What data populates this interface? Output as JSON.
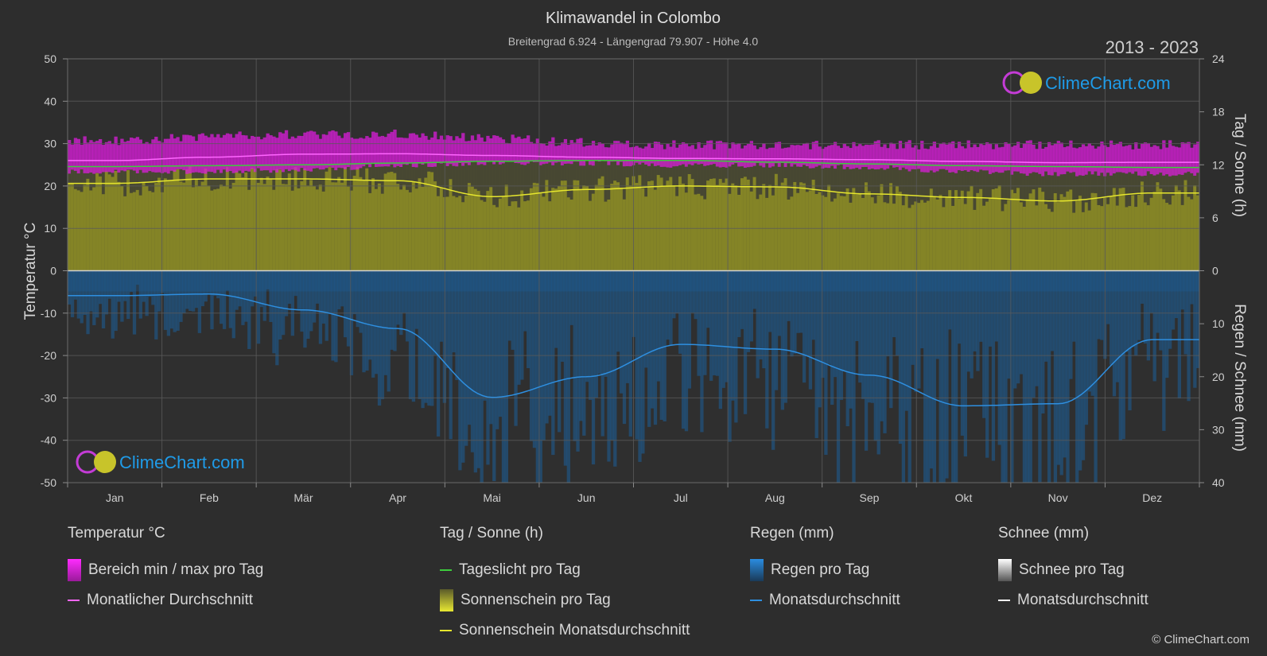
{
  "title": "Klimawandel in Colombo",
  "subtitle": "Breitengrad 6.924 - Längengrad 79.907 - Höhe 4.0",
  "years": "2013 - 2023",
  "logo_text": "ClimeChart.com",
  "copyright": "© ClimeChart.com",
  "colors": {
    "background": "#2d2d2d",
    "temp_range": "#d91ed9",
    "temp_avg": "#ff66ff",
    "daylight": "#3dcc3d",
    "sunshine_fill": "#8f8f24",
    "sunshine_avg": "#e6e62e",
    "rain_fill": "#1c5f99",
    "rain_avg": "#2e8fe0",
    "snow_avg": "#ffffff",
    "logo_blue": "#1f9be8"
  },
  "chart_data": {
    "type": "area",
    "categories": [
      "Jan",
      "Feb",
      "Mär",
      "Apr",
      "Mai",
      "Jun",
      "Jul",
      "Aug",
      "Sep",
      "Okt",
      "Nov",
      "Dez"
    ],
    "axes": {
      "left": {
        "label": "Temperatur °C",
        "range": [
          -50,
          50
        ],
        "ticks": [
          50,
          40,
          30,
          20,
          10,
          0,
          -10,
          -20,
          -30,
          -40,
          -50
        ]
      },
      "right_top": {
        "label": "Tag / Sonne (h)",
        "range": [
          0,
          24
        ],
        "ticks": [
          24,
          18,
          12,
          6,
          0
        ]
      },
      "right_bottom": {
        "label": "Regen / Schnee (mm)",
        "range": [
          0,
          40
        ],
        "ticks": [
          0,
          10,
          20,
          30,
          40
        ]
      }
    },
    "grid": true,
    "series": {
      "temp_max": [
        30.5,
        31.5,
        32.0,
        32.0,
        31.0,
        30.0,
        29.5,
        29.5,
        29.5,
        29.5,
        29.5,
        29.5
      ],
      "temp_min": [
        23.5,
        23.5,
        24.0,
        25.0,
        25.5,
        25.5,
        25.0,
        25.0,
        24.5,
        23.5,
        23.0,
        23.0
      ],
      "temp_avg": [
        26.0,
        26.8,
        27.5,
        27.6,
        27.2,
        26.8,
        26.5,
        26.4,
        26.2,
        25.8,
        25.5,
        25.6
      ],
      "daylight_h": [
        11.8,
        11.9,
        12.0,
        12.2,
        12.4,
        12.5,
        12.5,
        12.3,
        12.1,
        11.9,
        11.8,
        11.7
      ],
      "sunshine_avg_h": [
        9.9,
        10.4,
        10.4,
        10.2,
        8.4,
        9.2,
        9.6,
        9.5,
        8.7,
        8.3,
        7.9,
        8.8
      ],
      "rain_avg_mm": [
        4.7,
        4.4,
        7.4,
        10.9,
        23.9,
        20.0,
        13.9,
        14.8,
        19.7,
        25.5,
        25.1,
        13.0
      ],
      "snow_avg_mm": [
        0,
        0,
        0,
        0,
        0,
        0,
        0,
        0,
        0,
        0,
        0,
        0
      ]
    }
  },
  "legend": {
    "temperature": {
      "header": "Temperatur °C",
      "items": [
        "Bereich min / max pro Tag",
        "Monatlicher Durchschnitt"
      ]
    },
    "sun": {
      "header": "Tag / Sonne (h)",
      "items": [
        "Tageslicht pro Tag",
        "Sonnenschein pro Tag",
        "Sonnenschein Monatsdurchschnitt"
      ]
    },
    "rain": {
      "header": "Regen (mm)",
      "items": [
        "Regen pro Tag",
        "Monatsdurchschnitt"
      ]
    },
    "snow": {
      "header": "Schnee (mm)",
      "items": [
        "Schnee pro Tag",
        "Monatsdurchschnitt"
      ]
    }
  }
}
